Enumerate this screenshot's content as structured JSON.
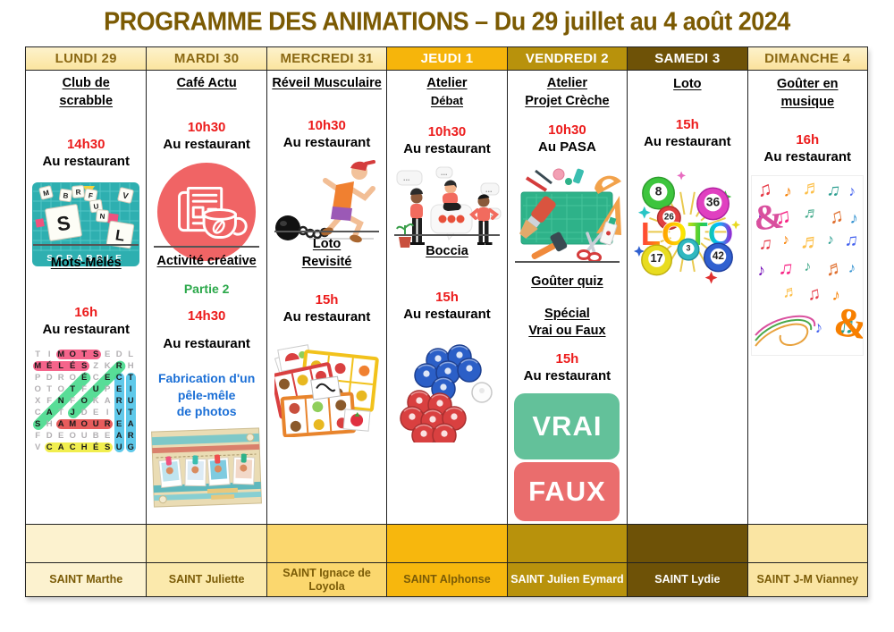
{
  "title": "PROGRAMME DES ANIMATIONS – Du 29 juillet au 4 août 2024",
  "styles": {
    "title_color": "#7B5A03",
    "time_color": "#EC1C1C",
    "part_color": "#2BA84A",
    "note_color": "#1B6FD6",
    "border_color": "#222222"
  },
  "days": [
    {
      "label": "LUNDI 29",
      "slug": "lundi-29",
      "header_bg": "#FBE6A3",
      "header_fg": "#8B6914",
      "footer_bg": "#FCF2CF",
      "saint": "SAINT Marthe",
      "saint_fg": "#7A5B07",
      "activities": [
        {
          "title_lines": [
            "Club de",
            "scrabble"
          ],
          "time": "14h30",
          "location": "Au restaurant",
          "image": "scrabble-board-image"
        },
        {
          "title_lines": [
            "Mots-Mêlés"
          ],
          "time": "16h",
          "location": "Au restaurant",
          "image": "word-search-image"
        }
      ]
    },
    {
      "label": "MARDI 30",
      "slug": "mardi-30",
      "header_bg": "#FBE6A3",
      "header_fg": "#8B6914",
      "footer_bg": "#FBE9AC",
      "saint": "SAINT Juliette",
      "saint_fg": "#7A5B07",
      "activities": [
        {
          "title_lines": [
            "Café Actu"
          ],
          "time": "10h30",
          "location": "Au restaurant",
          "image": "newspaper-coffee-image"
        },
        {
          "title_lines": [
            "Activité créative"
          ],
          "part_label": "Partie 2",
          "time": "14h30",
          "location": "Au restaurant",
          "note_lines": [
            "Fabrication d'un",
            "pêle-mêle",
            "de photos"
          ],
          "image": "photo-collage-image"
        }
      ]
    },
    {
      "label": "MERCREDI 31",
      "slug": "mercredi-31",
      "header_bg": "#FBE6A3",
      "header_fg": "#8B6914",
      "footer_bg": "#FBD76E",
      "saint": "SAINT Ignace de Loyola",
      "saint_fg": "#7A5B07",
      "activities": [
        {
          "title_lines": [
            "Réveil Musculaire"
          ],
          "time": "10h30",
          "location": "Au restaurant",
          "image": "runner-ball-chain-image"
        },
        {
          "title_lines": [
            "Loto",
            "Revisité"
          ],
          "time": "15h",
          "location": "Au restaurant",
          "image": "food-loto-image"
        }
      ]
    },
    {
      "label": "JEUDI 1",
      "slug": "jeudi-1",
      "header_bg": "#F6B50B",
      "header_fg": "#FFFFFF",
      "footer_bg": "#F7B70D",
      "saint": "SAINT Alphonse",
      "saint_fg": "#7A5B07",
      "activities": [
        {
          "title_lines": [
            "Atelier",
            "Débat"
          ],
          "title_line2_small": true,
          "time": "10h30",
          "location": "Au restaurant",
          "image": "debate-people-image"
        },
        {
          "title_lines": [
            "Boccia"
          ],
          "time": "15h",
          "location": "Au restaurant",
          "image": "boccia-balls-image"
        }
      ]
    },
    {
      "label": "VENDREDI 2",
      "slug": "vendredi-2",
      "header_bg": "#B8920C",
      "header_fg": "#FFFFFF",
      "footer_bg": "#B8920C",
      "saint": "SAINT Julien Eymard",
      "saint_fg": "#FFFFFF",
      "activities": [
        {
          "title_lines": [
            "Atelier",
            "Projet Crèche"
          ],
          "time": "10h30",
          "location": "Au PASA",
          "image": "craft-tools-image"
        },
        {
          "title_lines": [
            "Goûter quiz"
          ],
          "subtitle_lines": [
            "Spécial",
            "Vrai ou Faux"
          ],
          "time": "15h",
          "location": "Au restaurant",
          "image": "vrai-faux-image"
        }
      ]
    },
    {
      "label": "SAMEDI 3",
      "slug": "samedi-3",
      "header_bg": "#6E5207",
      "header_fg": "#FFFFFF",
      "footer_bg": "#6E5207",
      "saint": "SAINT Lydie",
      "saint_fg": "#FFFFFF",
      "activities": [
        {
          "title_lines": [
            "Loto"
          ],
          "time": "15h",
          "location": "Au restaurant",
          "image": "loto-balls-image"
        }
      ]
    },
    {
      "label": "DIMANCHE 4",
      "slug": "dimanche-4",
      "header_bg": "#FBE3A0",
      "header_fg": "#8B6914",
      "footer_bg": "#FAE5A3",
      "saint": "SAINT J-M Vianney",
      "saint_fg": "#7A5B07",
      "activities": [
        {
          "title_lines": [
            "Goûter en",
            "musique"
          ],
          "time": "16h",
          "location": "Au restaurant",
          "image": "music-notes-image"
        }
      ]
    }
  ],
  "word_search": {
    "rows": [
      "TIMOTSEDL",
      "MÉLÉSZKRH",
      "PDROÉCECT",
      "OTOTFUPEI",
      "XFNFOKARU",
      "CATJDEIVT",
      "SHAMOUREA",
      "FDEOUBEAR",
      "VCACHÉSUG"
    ],
    "highlights": [
      {
        "word": "MOTS",
        "dir": "row",
        "row": 1,
        "from": 3,
        "to": 6,
        "color": "#F4537E"
      },
      {
        "word": "MÉLÉS",
        "dir": "row",
        "row": 2,
        "from": 1,
        "to": 5,
        "color": "#F4537E"
      },
      {
        "word": "AMOUR",
        "dir": "row",
        "row": 7,
        "from": 3,
        "to": 7,
        "color": "#E44A4A"
      },
      {
        "word": "CACHÉS",
        "dir": "row",
        "row": 9,
        "from": 2,
        "to": 7,
        "color": "#F0EC3C"
      },
      {
        "word": "CERVEAU",
        "dir": "col",
        "col": 8,
        "from": 3,
        "to": 9,
        "color": "#4EC3E8"
      },
      {
        "word": "GRATUIT",
        "dir": "col",
        "col": 9,
        "from": 3,
        "to": 9,
        "color": "#4EC3E8"
      },
      {
        "word": "SANTÉ",
        "dir": "diag",
        "from_cell": [
          7,
          1
        ],
        "to_cell": [
          3,
          5
        ],
        "color": "#46D98C"
      },
      {
        "word": "JOUER",
        "dir": "diag",
        "from_cell": [
          6,
          4
        ],
        "to_cell": [
          2,
          8
        ],
        "color": "#46D98C"
      }
    ]
  },
  "images": {
    "scrabble_text": "SCRABBLE",
    "scrabble_tiles": [
      "M",
      "B",
      "R",
      "F",
      "U",
      "N",
      "V",
      "S",
      "L"
    ],
    "loto_text": "LOTO",
    "loto_ball_numbers": [
      "8",
      "36",
      "26",
      "3",
      "17",
      "42"
    ],
    "vrai_label": "VRAI",
    "faux_label": "FAUX"
  }
}
